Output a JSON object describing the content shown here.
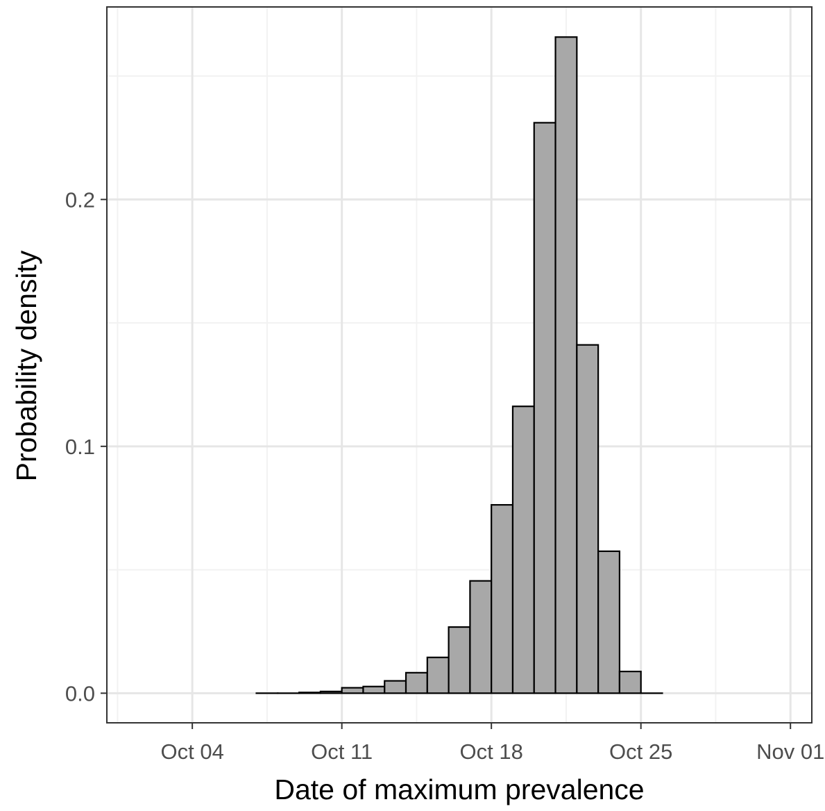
{
  "chart_data": {
    "type": "bar",
    "title": "",
    "xlabel": "Date of maximum prevalence",
    "ylabel": "Probability density",
    "x_tick_labels": [
      "Oct 04",
      "Oct 11",
      "Oct 18",
      "Oct 25",
      "Nov 01"
    ],
    "y_tick_labels": [
      "0.0",
      "0.1",
      "0.2"
    ],
    "y_ticks": [
      0.0,
      0.1,
      0.2
    ],
    "ylim": [
      -0.012,
      0.278
    ],
    "xlim": [
      "2020-09-30",
      "2020-11-02"
    ],
    "grid": true,
    "legend": "none",
    "bin_width_days": 1,
    "bins": [
      {
        "start": "2020-10-07",
        "value": 0.0
      },
      {
        "start": "2020-10-08",
        "value": 0.0
      },
      {
        "start": "2020-10-09",
        "value": 0.0003
      },
      {
        "start": "2020-10-10",
        "value": 0.0007
      },
      {
        "start": "2020-10-11",
        "value": 0.0022
      },
      {
        "start": "2020-10-12",
        "value": 0.0027
      },
      {
        "start": "2020-10-13",
        "value": 0.005
      },
      {
        "start": "2020-10-14",
        "value": 0.0083
      },
      {
        "start": "2020-10-15",
        "value": 0.0145
      },
      {
        "start": "2020-10-16",
        "value": 0.0268
      },
      {
        "start": "2020-10-17",
        "value": 0.0455
      },
      {
        "start": "2020-10-18",
        "value": 0.0763
      },
      {
        "start": "2020-10-19",
        "value": 0.1162
      },
      {
        "start": "2020-10-20",
        "value": 0.2311
      },
      {
        "start": "2020-10-21",
        "value": 0.2658
      },
      {
        "start": "2020-10-22",
        "value": 0.1411
      },
      {
        "start": "2020-10-23",
        "value": 0.0575
      },
      {
        "start": "2020-10-24",
        "value": 0.0088
      },
      {
        "start": "2020-10-25",
        "value": 0.0
      }
    ],
    "colors": {
      "bar_fill": "#a8a8a8",
      "bar_stroke": "#000000",
      "grid_major": "#e6e6e6",
      "grid_minor": "#f2f2f2",
      "panel_border": "#333333"
    }
  }
}
